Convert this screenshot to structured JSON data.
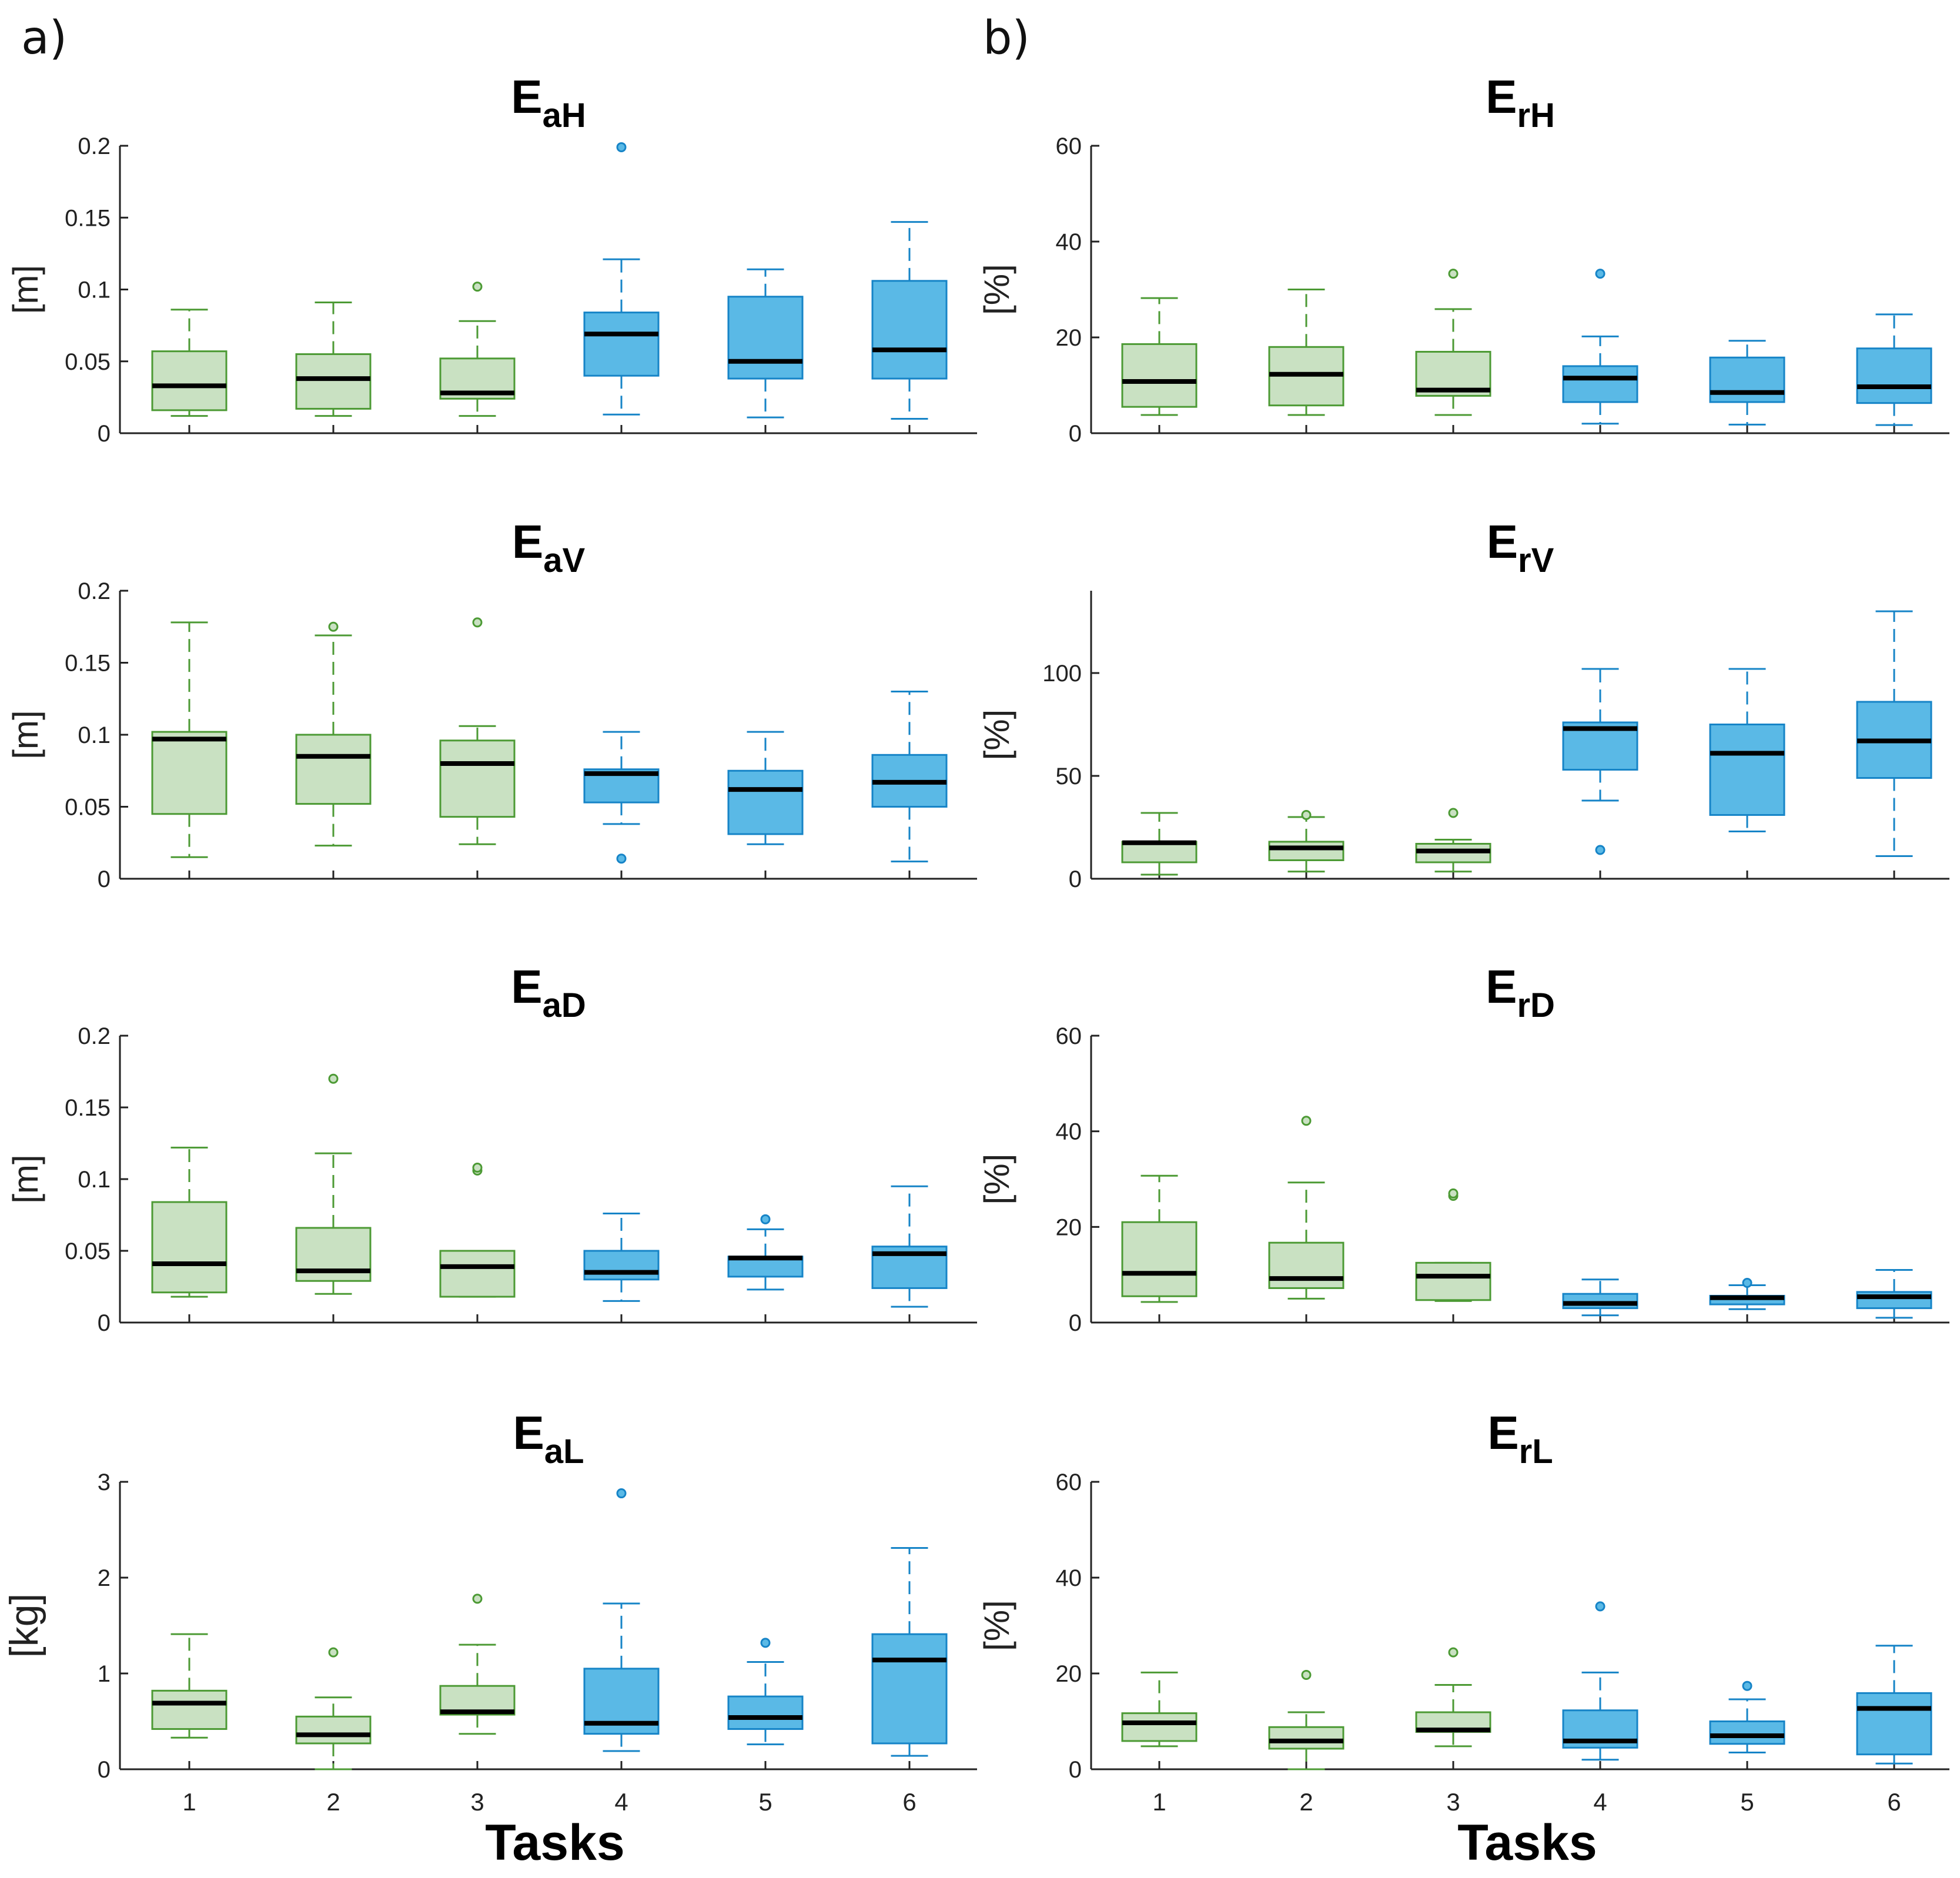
{
  "panel_labels": {
    "left": "a)",
    "right": "b)"
  },
  "x_titles": {
    "left": "Tasks",
    "right": "Tasks"
  },
  "colors": {
    "green_fill": "#c9e1c2",
    "green_stroke": "#4c9a34",
    "blue_fill": "#5ab9e6",
    "blue_stroke": "#1684c7",
    "median": "#000000",
    "axis": "#222222"
  },
  "chart_data": [
    {
      "type": "boxplot",
      "title_main": "E",
      "title_sub": "aH",
      "ylabel": "[m]",
      "ylim": [
        0,
        0.2
      ],
      "yticks": [
        0,
        0.05,
        0.1,
        0.15,
        0.2
      ],
      "ytick_labels": [
        "0",
        "0.05",
        "0.1",
        "0.15",
        "0.2"
      ],
      "categories": [
        "1",
        "2",
        "3",
        "4",
        "5",
        "6"
      ],
      "groups": [
        "green",
        "green",
        "green",
        "blue",
        "blue",
        "blue"
      ],
      "boxes": [
        {
          "whisker_low": 0.012,
          "q1": 0.016,
          "median": 0.033,
          "q3": 0.057,
          "whisker_high": 0.086,
          "outliers": []
        },
        {
          "whisker_low": 0.012,
          "q1": 0.017,
          "median": 0.038,
          "q3": 0.055,
          "whisker_high": 0.091,
          "outliers": []
        },
        {
          "whisker_low": 0.012,
          "q1": 0.024,
          "median": 0.028,
          "q3": 0.052,
          "whisker_high": 0.078,
          "outliers": [
            0.102
          ]
        },
        {
          "whisker_low": 0.013,
          "q1": 0.04,
          "median": 0.069,
          "q3": 0.084,
          "whisker_high": 0.121,
          "outliers": [
            0.199
          ]
        },
        {
          "whisker_low": 0.011,
          "q1": 0.038,
          "median": 0.05,
          "q3": 0.095,
          "whisker_high": 0.114,
          "outliers": []
        },
        {
          "whisker_low": 0.01,
          "q1": 0.038,
          "median": 0.058,
          "q3": 0.106,
          "whisker_high": 0.147,
          "outliers": []
        }
      ]
    },
    {
      "type": "boxplot",
      "title_main": "E",
      "title_sub": "rH",
      "ylabel": "[%]",
      "ylim": [
        0,
        60
      ],
      "yticks": [
        0,
        20,
        40,
        60
      ],
      "ytick_labels": [
        "0",
        "20",
        "40",
        "60"
      ],
      "categories": [
        "1",
        "2",
        "3",
        "4",
        "5",
        "6"
      ],
      "groups": [
        "green",
        "green",
        "green",
        "blue",
        "blue",
        "blue"
      ],
      "boxes": [
        {
          "whisker_low": 3.8,
          "q1": 5.5,
          "median": 10.8,
          "q3": 18.6,
          "whisker_high": 28.2,
          "outliers": []
        },
        {
          "whisker_low": 3.8,
          "q1": 5.8,
          "median": 12.3,
          "q3": 18.0,
          "whisker_high": 30.0,
          "outliers": []
        },
        {
          "whisker_low": 3.8,
          "q1": 7.8,
          "median": 9.0,
          "q3": 17.0,
          "whisker_high": 25.9,
          "outliers": [
            33.3
          ]
        },
        {
          "whisker_low": 2.0,
          "q1": 6.5,
          "median": 11.5,
          "q3": 14.0,
          "whisker_high": 20.2,
          "outliers": [
            33.3
          ]
        },
        {
          "whisker_low": 1.8,
          "q1": 6.5,
          "median": 8.5,
          "q3": 15.8,
          "whisker_high": 19.3,
          "outliers": []
        },
        {
          "whisker_low": 1.7,
          "q1": 6.3,
          "median": 9.7,
          "q3": 17.7,
          "whisker_high": 24.8,
          "outliers": []
        }
      ]
    },
    {
      "type": "boxplot",
      "title_main": "E",
      "title_sub": "aV",
      "ylabel": "[m]",
      "ylim": [
        0,
        0.2
      ],
      "yticks": [
        0,
        0.05,
        0.1,
        0.15,
        0.2
      ],
      "ytick_labels": [
        "0",
        "0.05",
        "0.1",
        "0.15",
        "0.2"
      ],
      "categories": [
        "1",
        "2",
        "3",
        "4",
        "5",
        "6"
      ],
      "groups": [
        "green",
        "green",
        "green",
        "blue",
        "blue",
        "blue"
      ],
      "boxes": [
        {
          "whisker_low": 0.015,
          "q1": 0.045,
          "median": 0.097,
          "q3": 0.102,
          "whisker_high": 0.178,
          "outliers": []
        },
        {
          "whisker_low": 0.023,
          "q1": 0.052,
          "median": 0.085,
          "q3": 0.1,
          "whisker_high": 0.169,
          "outliers": [
            0.175
          ]
        },
        {
          "whisker_low": 0.024,
          "q1": 0.043,
          "median": 0.08,
          "q3": 0.096,
          "whisker_high": 0.106,
          "outliers": [
            0.178
          ]
        },
        {
          "whisker_low": 0.038,
          "q1": 0.053,
          "median": 0.073,
          "q3": 0.076,
          "whisker_high": 0.102,
          "outliers": [
            0.014
          ]
        },
        {
          "whisker_low": 0.024,
          "q1": 0.031,
          "median": 0.062,
          "q3": 0.075,
          "whisker_high": 0.102,
          "outliers": []
        },
        {
          "whisker_low": 0.012,
          "q1": 0.05,
          "median": 0.067,
          "q3": 0.086,
          "whisker_high": 0.13,
          "outliers": []
        }
      ]
    },
    {
      "type": "boxplot",
      "title_main": "E",
      "title_sub": "rV",
      "ylabel": "[%]",
      "ylim": [
        0,
        140
      ],
      "yticks": [
        0,
        50,
        100
      ],
      "ytick_labels": [
        "0",
        "50",
        "100"
      ],
      "categories": [
        "1",
        "2",
        "3",
        "4",
        "5",
        "6"
      ],
      "groups": [
        "green",
        "green",
        "green",
        "blue",
        "blue",
        "blue"
      ],
      "boxes": [
        {
          "whisker_low": 2,
          "q1": 8,
          "median": 17.5,
          "q3": 18,
          "whisker_high": 32,
          "outliers": []
        },
        {
          "whisker_low": 3.5,
          "q1": 9,
          "median": 15,
          "q3": 18,
          "whisker_high": 30,
          "outliers": [
            31
          ]
        },
        {
          "whisker_low": 3.5,
          "q1": 8,
          "median": 13.5,
          "q3": 17,
          "whisker_high": 19,
          "outliers": [
            32
          ]
        },
        {
          "whisker_low": 38,
          "q1": 53,
          "median": 73,
          "q3": 76,
          "whisker_high": 102,
          "outliers": [
            14
          ]
        },
        {
          "whisker_low": 23,
          "q1": 31,
          "median": 61,
          "q3": 75,
          "whisker_high": 102,
          "outliers": []
        },
        {
          "whisker_low": 11,
          "q1": 49,
          "median": 67,
          "q3": 86,
          "whisker_high": 130,
          "outliers": []
        }
      ]
    },
    {
      "type": "boxplot",
      "title_main": "E",
      "title_sub": "aD",
      "ylabel": "[m]",
      "ylim": [
        0,
        0.2
      ],
      "yticks": [
        0,
        0.05,
        0.1,
        0.15,
        0.2
      ],
      "ytick_labels": [
        "0",
        "0.05",
        "0.1",
        "0.15",
        "0.2"
      ],
      "categories": [
        "1",
        "2",
        "3",
        "4",
        "5",
        "6"
      ],
      "groups": [
        "green",
        "green",
        "green",
        "blue",
        "blue",
        "blue"
      ],
      "boxes": [
        {
          "whisker_low": 0.018,
          "q1": 0.021,
          "median": 0.041,
          "q3": 0.084,
          "whisker_high": 0.122,
          "outliers": []
        },
        {
          "whisker_low": 0.02,
          "q1": 0.029,
          "median": 0.036,
          "q3": 0.066,
          "whisker_high": 0.118,
          "outliers": [
            0.17
          ]
        },
        {
          "whisker_low": 0.018,
          "q1": 0.018,
          "median": 0.039,
          "q3": 0.05,
          "whisker_high": 0.05,
          "outliers": [
            0.106,
            0.108
          ]
        },
        {
          "whisker_low": 0.015,
          "q1": 0.03,
          "median": 0.035,
          "q3": 0.05,
          "whisker_high": 0.076,
          "outliers": []
        },
        {
          "whisker_low": 0.023,
          "q1": 0.032,
          "median": 0.045,
          "q3": 0.046,
          "whisker_high": 0.065,
          "outliers": [
            0.072
          ]
        },
        {
          "whisker_low": 0.011,
          "q1": 0.024,
          "median": 0.048,
          "q3": 0.053,
          "whisker_high": 0.095,
          "outliers": []
        }
      ]
    },
    {
      "type": "boxplot",
      "title_main": "E",
      "title_sub": "rD",
      "ylabel": "[%]",
      "ylim": [
        0,
        60
      ],
      "yticks": [
        0,
        20,
        40,
        60
      ],
      "ytick_labels": [
        "0",
        "20",
        "40",
        "60"
      ],
      "categories": [
        "1",
        "2",
        "3",
        "4",
        "5",
        "6"
      ],
      "groups": [
        "green",
        "green",
        "green",
        "blue",
        "blue",
        "blue"
      ],
      "boxes": [
        {
          "whisker_low": 4.3,
          "q1": 5.5,
          "median": 10.3,
          "q3": 21.0,
          "whisker_high": 30.7,
          "outliers": []
        },
        {
          "whisker_low": 5.0,
          "q1": 7.2,
          "median": 9.2,
          "q3": 16.7,
          "whisker_high": 29.3,
          "outliers": [
            42.2
          ]
        },
        {
          "whisker_low": 4.5,
          "q1": 4.7,
          "median": 9.7,
          "q3": 12.5,
          "whisker_high": 12.5,
          "outliers": [
            26.5,
            27.0
          ]
        },
        {
          "whisker_low": 1.5,
          "q1": 3.0,
          "median": 4.0,
          "q3": 6.0,
          "whisker_high": 9.0,
          "outliers": []
        },
        {
          "whisker_low": 2.8,
          "q1": 3.8,
          "median": 5.2,
          "q3": 5.6,
          "whisker_high": 7.8,
          "outliers": [
            8.3
          ]
        },
        {
          "whisker_low": 1.0,
          "q1": 3.0,
          "median": 5.4,
          "q3": 6.4,
          "whisker_high": 11.0,
          "outliers": []
        }
      ]
    },
    {
      "type": "boxplot",
      "title_main": "E",
      "title_sub": "aL",
      "ylabel": "[kg]",
      "ylim": [
        0,
        3
      ],
      "yticks": [
        0,
        1,
        2,
        3
      ],
      "ytick_labels": [
        "0",
        "1",
        "2",
        "3"
      ],
      "categories": [
        "1",
        "2",
        "3",
        "4",
        "5",
        "6"
      ],
      "groups": [
        "green",
        "green",
        "green",
        "blue",
        "blue",
        "blue"
      ],
      "boxes": [
        {
          "whisker_low": 0.33,
          "q1": 0.42,
          "median": 0.69,
          "q3": 0.82,
          "whisker_high": 1.41,
          "outliers": []
        },
        {
          "whisker_low": 0.0,
          "q1": 0.27,
          "median": 0.36,
          "q3": 0.55,
          "whisker_high": 0.75,
          "outliers": [
            1.22
          ]
        },
        {
          "whisker_low": 0.37,
          "q1": 0.57,
          "median": 0.6,
          "q3": 0.87,
          "whisker_high": 1.3,
          "outliers": [
            1.78
          ]
        },
        {
          "whisker_low": 0.19,
          "q1": 0.37,
          "median": 0.48,
          "q3": 1.05,
          "whisker_high": 1.73,
          "outliers": [
            2.88
          ]
        },
        {
          "whisker_low": 0.26,
          "q1": 0.42,
          "median": 0.54,
          "q3": 0.76,
          "whisker_high": 1.12,
          "outliers": [
            1.32
          ]
        },
        {
          "whisker_low": 0.14,
          "q1": 0.27,
          "median": 1.14,
          "q3": 1.41,
          "whisker_high": 2.31,
          "outliers": []
        }
      ]
    },
    {
      "type": "boxplot",
      "title_main": "E",
      "title_sub": "rL",
      "ylabel": "[%]",
      "ylim": [
        0,
        60
      ],
      "yticks": [
        0,
        20,
        40,
        60
      ],
      "ytick_labels": [
        "0",
        "20",
        "40",
        "60"
      ],
      "categories": [
        "1",
        "2",
        "3",
        "4",
        "5",
        "6"
      ],
      "groups": [
        "green",
        "green",
        "green",
        "blue",
        "blue",
        "blue"
      ],
      "boxes": [
        {
          "whisker_low": 4.8,
          "q1": 5.9,
          "median": 9.7,
          "q3": 11.7,
          "whisker_high": 20.2,
          "outliers": []
        },
        {
          "whisker_low": 0.0,
          "q1": 4.3,
          "median": 5.9,
          "q3": 8.8,
          "whisker_high": 11.9,
          "outliers": [
            19.7
          ]
        },
        {
          "whisker_low": 4.8,
          "q1": 7.8,
          "median": 8.2,
          "q3": 11.9,
          "whisker_high": 17.6,
          "outliers": [
            24.4
          ]
        },
        {
          "whisker_low": 2.0,
          "q1": 4.5,
          "median": 5.9,
          "q3": 12.3,
          "whisker_high": 20.2,
          "outliers": [
            34.0
          ]
        },
        {
          "whisker_low": 3.5,
          "q1": 5.3,
          "median": 7.0,
          "q3": 10.0,
          "whisker_high": 14.6,
          "outliers": [
            17.4
          ]
        },
        {
          "whisker_low": 1.2,
          "q1": 3.1,
          "median": 12.7,
          "q3": 15.9,
          "whisker_high": 25.8,
          "outliers": []
        }
      ]
    }
  ]
}
